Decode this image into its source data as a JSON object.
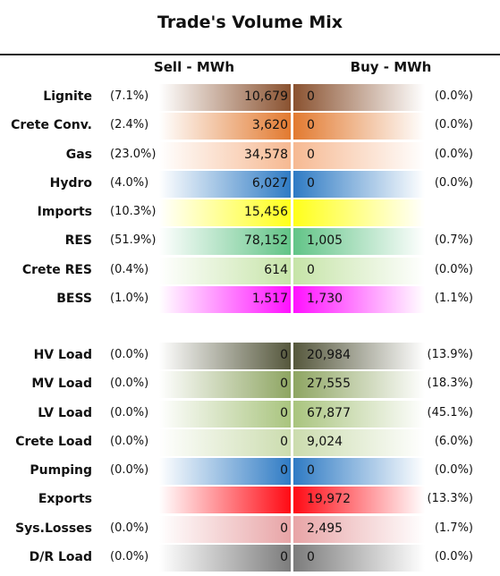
{
  "title": "Trade's Volume Mix",
  "headers": {
    "sell": "Sell - MWh",
    "buy": "Buy - MWh"
  },
  "groups": [
    {
      "rows": [
        {
          "label": "Lignite",
          "sell_pct": "(7.1%)",
          "sell": "10,679",
          "buy": "0",
          "buy_pct": "(0.0%)",
          "color": "#8a5230"
        },
        {
          "label": "Crete Conv.",
          "sell_pct": "(2.4%)",
          "sell": "3,620",
          "buy": "0",
          "buy_pct": "(0.0%)",
          "color": "#e27a30"
        },
        {
          "label": "Gas",
          "sell_pct": "(23.0%)",
          "sell": "34,578",
          "buy": "0",
          "buy_pct": "(0.0%)",
          "color": "#f6b992"
        },
        {
          "label": "Hydro",
          "sell_pct": "(4.0%)",
          "sell": "6,027",
          "buy": "0",
          "buy_pct": "(0.0%)",
          "color": "#2f7bc4"
        },
        {
          "label": "Imports",
          "sell_pct": "(10.3%)",
          "sell": "15,456",
          "buy": null,
          "buy_pct": null,
          "color": "#ffff1a"
        },
        {
          "label": "RES",
          "sell_pct": "(51.9%)",
          "sell": "78,152",
          "buy": "1,005",
          "buy_pct": "(0.7%)",
          "color": "#62c487"
        },
        {
          "label": "Crete RES",
          "sell_pct": "(0.4%)",
          "sell": "614",
          "buy": "0",
          "buy_pct": "(0.0%)",
          "color": "#c6e4a8"
        },
        {
          "label": "BESS",
          "sell_pct": "(1.0%)",
          "sell": "1,517",
          "buy": "1,730",
          "buy_pct": "(1.1%)",
          "color": "#ff10ff"
        }
      ]
    },
    {
      "rows": [
        {
          "label": "HV Load",
          "sell_pct": "(0.0%)",
          "sell": "0",
          "buy": "20,984",
          "buy_pct": "(13.9%)",
          "color": "#55573c"
        },
        {
          "label": "MV Load",
          "sell_pct": "(0.0%)",
          "sell": "0",
          "buy": "27,555",
          "buy_pct": "(18.3%)",
          "color": "#8ea562"
        },
        {
          "label": "LV Load",
          "sell_pct": "(0.0%)",
          "sell": "0",
          "buy": "67,877",
          "buy_pct": "(45.1%)",
          "color": "#a9c47e"
        },
        {
          "label": "Crete Load",
          "sell_pct": "(0.0%)",
          "sell": "0",
          "buy": "9,024",
          "buy_pct": "(6.0%)",
          "color": "#cbdcae"
        },
        {
          "label": "Pumping",
          "sell_pct": "(0.0%)",
          "sell": "0",
          "buy": "0",
          "buy_pct": "(0.0%)",
          "color": "#2f7bc4"
        },
        {
          "label": "Exports",
          "sell_pct": null,
          "sell": null,
          "buy": "19,972",
          "buy_pct": "(13.3%)",
          "color": "#ff0a14"
        },
        {
          "label": "Sys.Losses",
          "sell_pct": "(0.0%)",
          "sell": "0",
          "buy": "2,495",
          "buy_pct": "(1.7%)",
          "color": "#e8a4a6"
        },
        {
          "label": "D/R Load",
          "sell_pct": "(0.0%)",
          "sell": "0",
          "buy": "0",
          "buy_pct": "(0.0%)",
          "color": "#7c7c7c"
        }
      ]
    }
  ]
}
